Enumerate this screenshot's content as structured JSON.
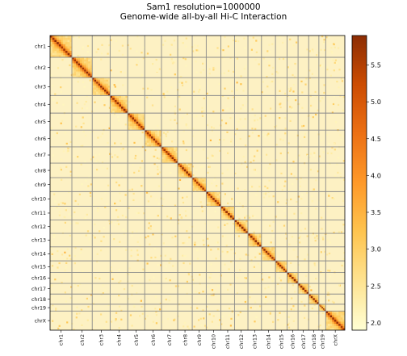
{
  "chart_data": {
    "type": "heatmap",
    "title": "Sam1 resolution=1000000",
    "subtitle": "Genome-wide all-by-all Hi-C Interaction",
    "chromosomes": [
      {
        "name": "chr1",
        "size_mb": 195
      },
      {
        "name": "chr2",
        "size_mb": 182
      },
      {
        "name": "chr3",
        "size_mb": 160
      },
      {
        "name": "chr4",
        "size_mb": 157
      },
      {
        "name": "chr5",
        "size_mb": 152
      },
      {
        "name": "chr6",
        "size_mb": 150
      },
      {
        "name": "chr7",
        "size_mb": 145
      },
      {
        "name": "chr8",
        "size_mb": 130
      },
      {
        "name": "chr9",
        "size_mb": 125
      },
      {
        "name": "chr10",
        "size_mb": 131
      },
      {
        "name": "chr11",
        "size_mb": 122
      },
      {
        "name": "chr12",
        "size_mb": 120
      },
      {
        "name": "chr13",
        "size_mb": 121
      },
      {
        "name": "chr14",
        "size_mb": 125
      },
      {
        "name": "chr15",
        "size_mb": 104
      },
      {
        "name": "chr16",
        "size_mb": 98
      },
      {
        "name": "chr17",
        "size_mb": 95
      },
      {
        "name": "chr18",
        "size_mb": 91
      },
      {
        "name": "chr19",
        "size_mb": 61
      },
      {
        "name": "chrX",
        "size_mb": 171
      }
    ],
    "value_range": [
      1.9,
      5.9
    ],
    "colorbar_ticks": [
      "2.0",
      "2.5",
      "3.0",
      "3.5",
      "4.0",
      "4.5",
      "5.0",
      "5.5"
    ],
    "colormap": [
      "#ffffd4",
      "#fee391",
      "#fec44f",
      "#fe9929",
      "#ec7014",
      "#cc4c02",
      "#8c2d04"
    ],
    "intra_chrom_max": 5.8,
    "inter_chrom_background": 2.1,
    "grid": true
  }
}
